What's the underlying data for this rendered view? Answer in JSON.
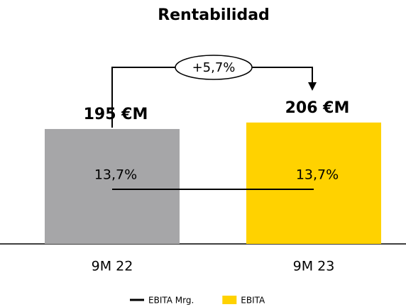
{
  "chart_data": {
    "type": "bar",
    "title": "Rentabilidad",
    "categories": [
      "9M 22",
      "9M 23"
    ],
    "series": [
      {
        "name": "EBITA Mrg.",
        "type": "line",
        "axis": "y2",
        "color": "#000000",
        "values": [
          13.7,
          13.7
        ],
        "value_labels": [
          "13,7%",
          "13,7%"
        ]
      },
      {
        "name": "EBITA",
        "type": "bar",
        "color": "#ffd200",
        "bar_colors": [
          "#a6a6a8",
          "#ffd200"
        ],
        "values": [
          195,
          206
        ],
        "value_labels": [
          "195 €M",
          "206 €M"
        ]
      }
    ],
    "annotations": [
      {
        "text": "+5,7%"
      }
    ]
  }
}
